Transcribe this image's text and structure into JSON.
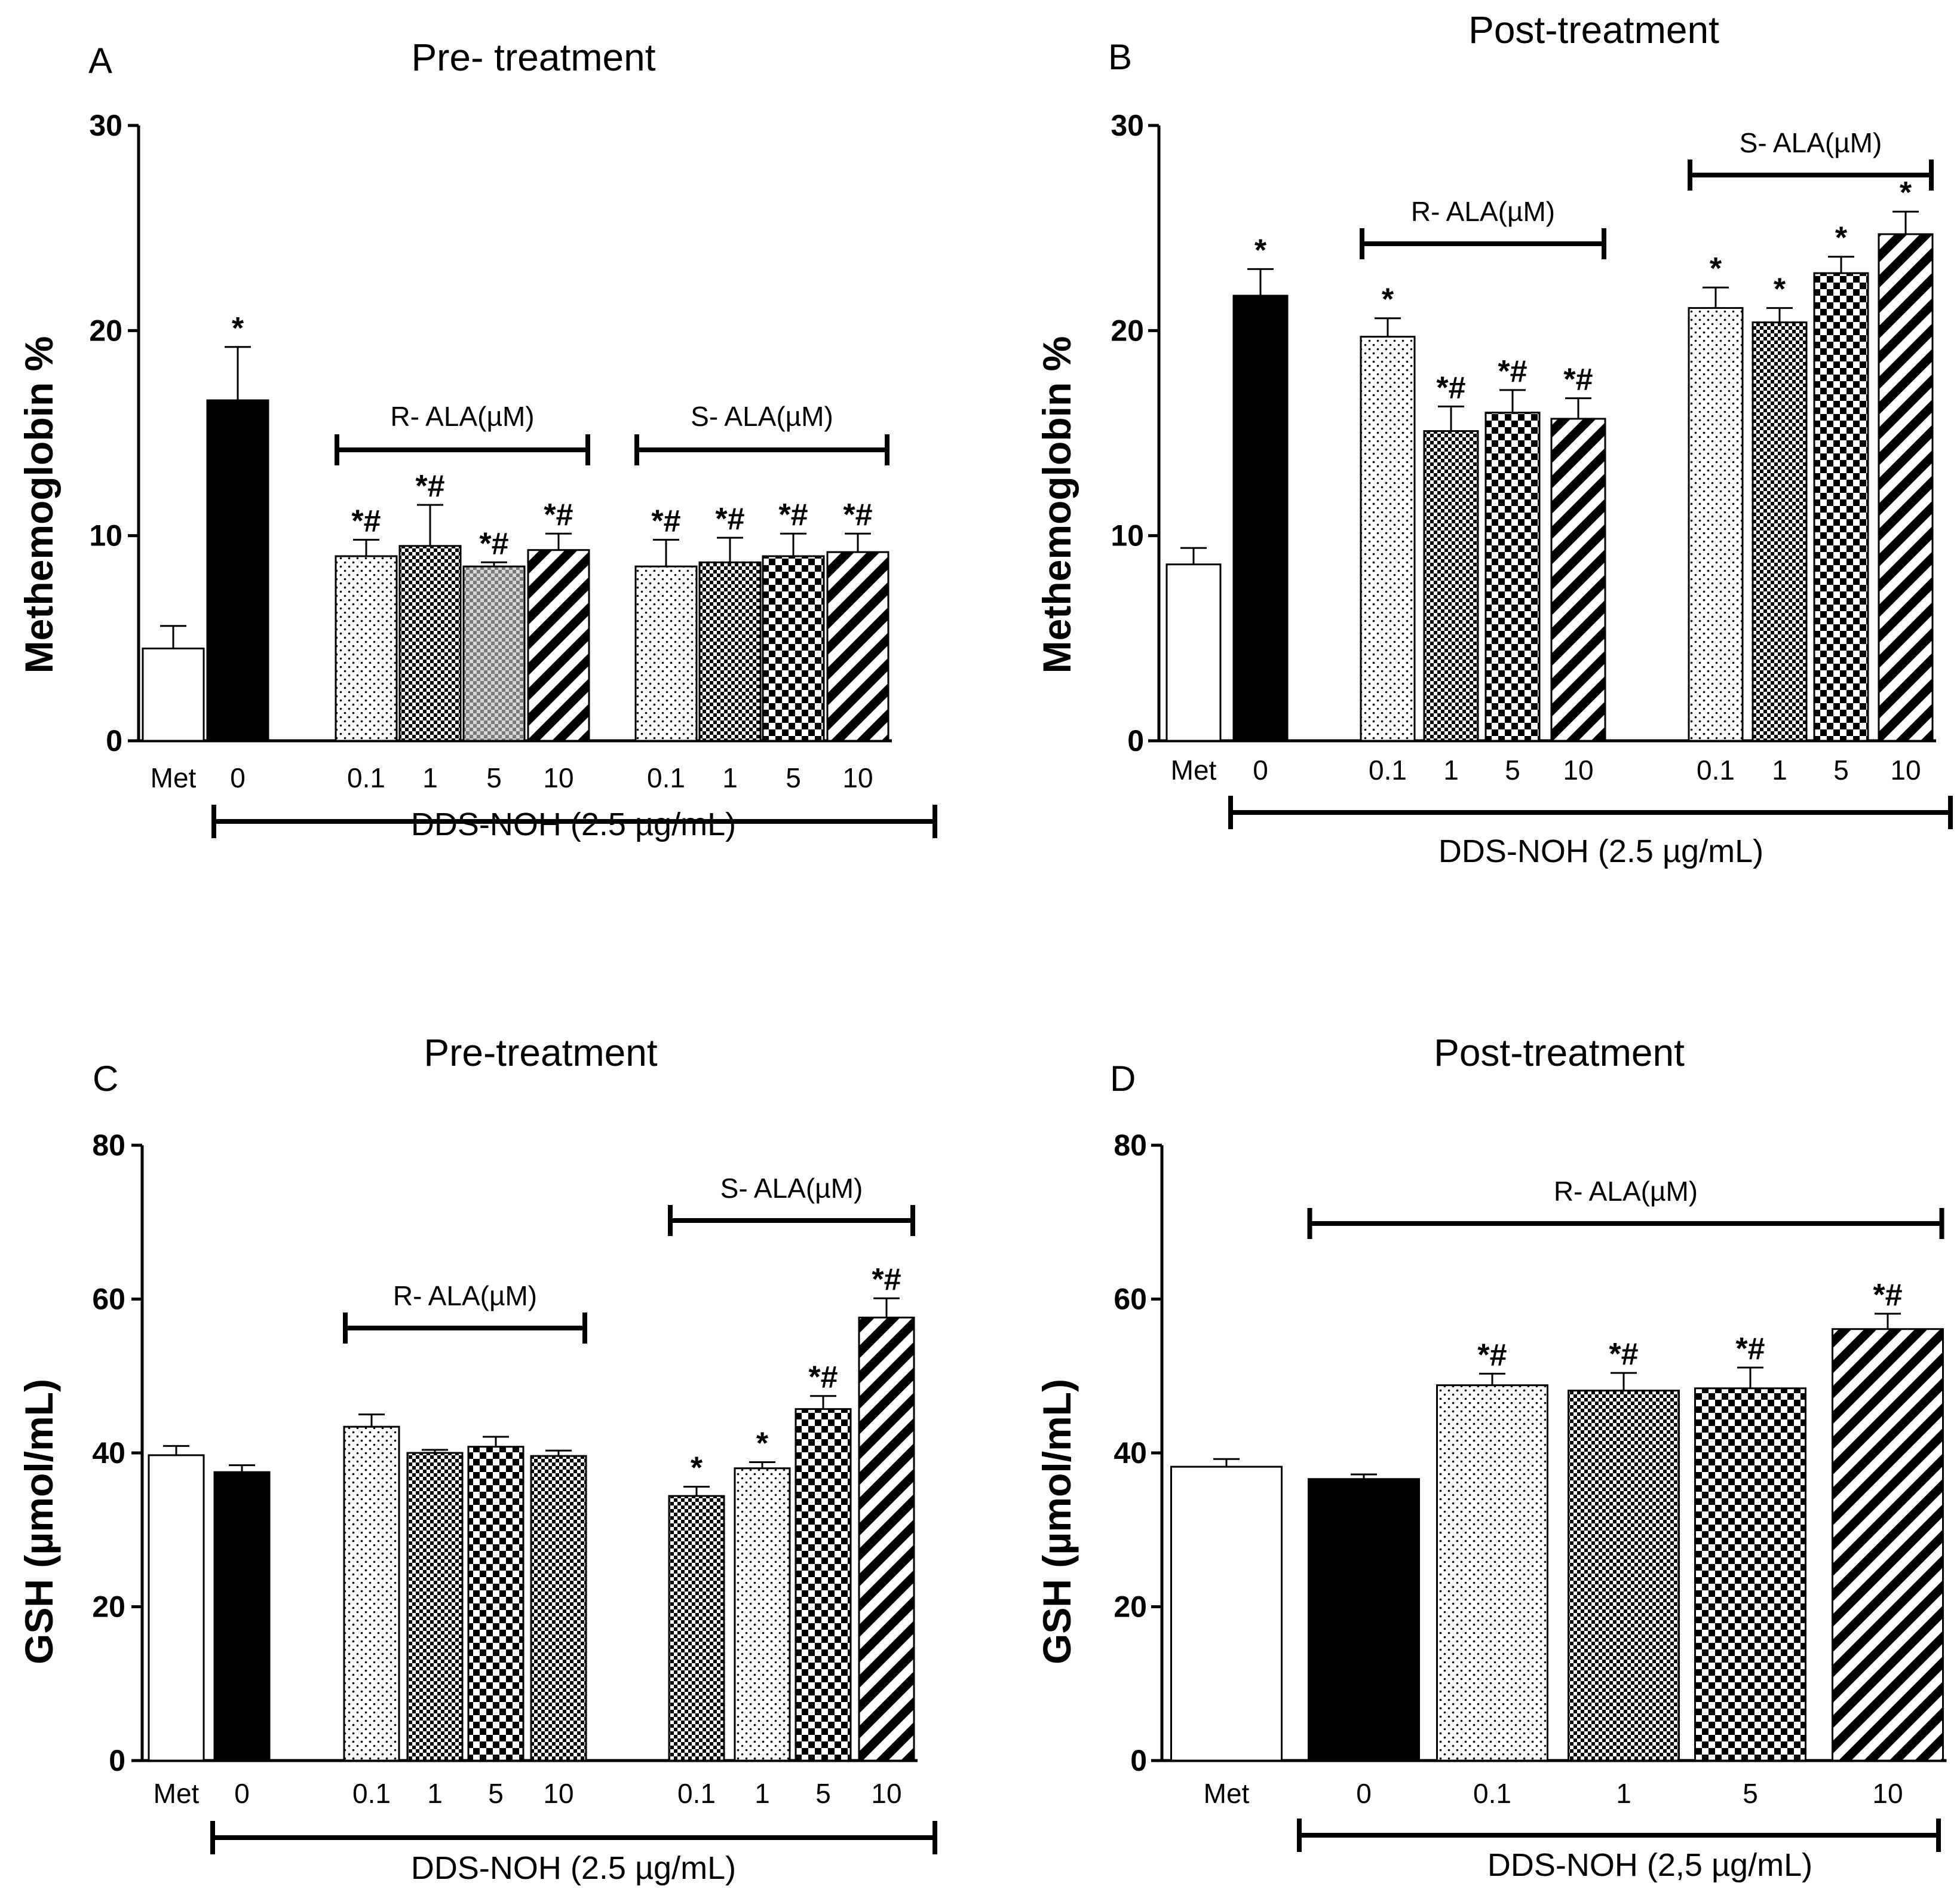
{
  "figure": {
    "background": "#ffffff",
    "ink": "#000000"
  },
  "chart_data": [
    {
      "panel": "A",
      "type": "bar",
      "title": "Pre- treatment",
      "ylabel": "Methemoglobin %",
      "ylim": [
        0,
        30
      ],
      "yticks": [
        0,
        10,
        20,
        30
      ],
      "xlabel": "DDS-NOH  (2.5 µg/mL)",
      "categories": [
        "Met",
        "0",
        "0.1",
        "1",
        "5",
        "10",
        "0.1",
        "1",
        "5",
        "10"
      ],
      "values": [
        4.5,
        16.6,
        9.0,
        9.5,
        8.5,
        9.3,
        8.5,
        8.7,
        9.0,
        9.2
      ],
      "errors": [
        1.1,
        2.6,
        0.8,
        2.0,
        0.2,
        0.8,
        1.3,
        1.2,
        1.1,
        0.9
      ],
      "significance": [
        "",
        "*",
        "*#",
        "*#",
        "*#",
        "*#",
        "*#",
        "*#",
        "*#",
        "*#"
      ],
      "patterns": [
        "white",
        "black",
        "dots",
        "checker-small",
        "gray-checker",
        "stripes",
        "dots",
        "checker-small",
        "checker-large",
        "stripes"
      ],
      "groups": [
        {
          "label": "R- ALA(µM)",
          "start": 2,
          "end": 5
        },
        {
          "label": "S- ALA(µM)",
          "start": 6,
          "end": 9
        }
      ]
    },
    {
      "panel": "B",
      "type": "bar",
      "title": "Post-treatment",
      "ylabel": "Methemoglobin %",
      "ylim": [
        0,
        30
      ],
      "yticks": [
        0,
        10,
        20,
        30
      ],
      "xlabel": "DDS-NOH  (2.5 µg/mL)",
      "categories": [
        "Met",
        "0",
        "0.1",
        "1",
        "5",
        "10",
        "0.1",
        "1",
        "5",
        "10"
      ],
      "values": [
        8.6,
        21.7,
        19.7,
        15.1,
        16.0,
        15.7,
        21.1,
        20.4,
        22.8,
        24.7
      ],
      "errors": [
        0.8,
        1.3,
        0.9,
        1.2,
        1.1,
        1.0,
        1.0,
        0.7,
        0.8,
        1.1
      ],
      "significance": [
        "",
        "*",
        "*",
        "*#",
        "*#",
        "*#",
        "*",
        "*",
        "*",
        "*"
      ],
      "patterns": [
        "white",
        "black",
        "dots",
        "checker-small",
        "checker-large",
        "stripes",
        "dots",
        "checker-small",
        "checker-large",
        "stripes"
      ],
      "groups": [
        {
          "label": "R- ALA(µM)",
          "start": 2,
          "end": 5
        },
        {
          "label": "S- ALA(µM)",
          "start": 6,
          "end": 9
        }
      ]
    },
    {
      "panel": "C",
      "type": "bar",
      "title": "Pre-treatment",
      "ylabel": "GSH (µmol/mL)",
      "ylim": [
        0,
        80
      ],
      "yticks": [
        0,
        20,
        40,
        60,
        80
      ],
      "xlabel": "DDS-NOH  (2.5 µg/mL)",
      "categories": [
        "Met",
        "0",
        "0.1",
        "1",
        "5",
        "10",
        "0.1",
        "1",
        "5",
        "10"
      ],
      "values": [
        39.7,
        37.5,
        43.4,
        40.0,
        40.8,
        39.6,
        34.4,
        38.0,
        45.7,
        57.6
      ],
      "errors": [
        1.2,
        0.9,
        1.6,
        0.4,
        1.3,
        0.7,
        1.2,
        0.8,
        1.7,
        2.5
      ],
      "significance": [
        "",
        "",
        "",
        "",
        "",
        "",
        "*",
        "*",
        "*#",
        "*#"
      ],
      "patterns": [
        "white",
        "black",
        "dots",
        "checker-small",
        "checker-large",
        "checker-small",
        "checker-small",
        "dots",
        "checker-large",
        "stripes"
      ],
      "groups": [
        {
          "label": "R- ALA(µM)",
          "start": 2,
          "end": 5
        },
        {
          "label": "S- ALA(µM)",
          "start": 6,
          "end": 9
        }
      ]
    },
    {
      "panel": "D",
      "type": "bar",
      "title": "Post-treatment",
      "ylabel": "GSH (µmol/mL)",
      "ylim": [
        0,
        80
      ],
      "yticks": [
        0,
        20,
        40,
        60,
        80
      ],
      "xlabel": "DDS-NOH  (2,5 µg/mL)",
      "categories": [
        "Met",
        "0",
        "0.1",
        "1",
        "5",
        "10"
      ],
      "values": [
        38.2,
        36.6,
        48.8,
        48.1,
        48.4,
        56.1
      ],
      "errors": [
        1.0,
        0.6,
        1.5,
        2.3,
        2.7,
        2.0
      ],
      "significance": [
        "",
        "",
        "*#",
        "*#",
        "*#",
        "*#"
      ],
      "patterns": [
        "white",
        "black",
        "dots",
        "checker-small",
        "checker-large",
        "stripes"
      ],
      "groups": [
        {
          "label": "R- ALA(µM)",
          "start": 1,
          "end": 5
        }
      ]
    }
  ]
}
